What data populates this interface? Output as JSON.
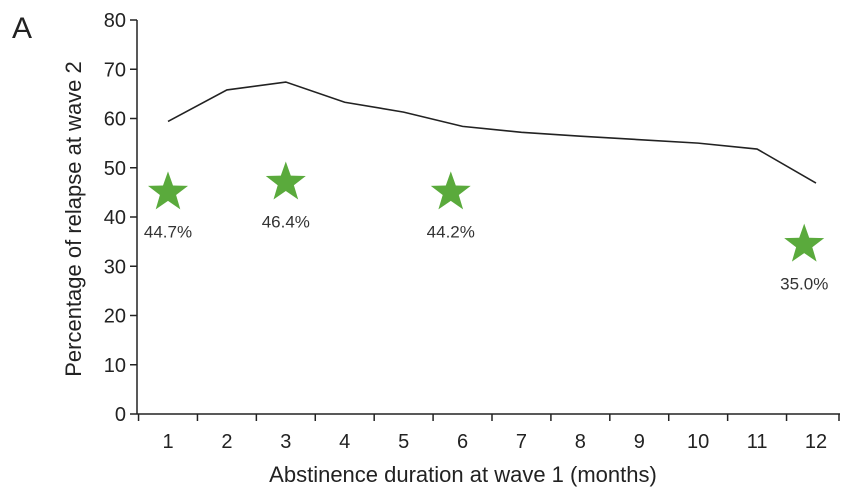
{
  "panel_label": "A",
  "colors": {
    "line": "#222222",
    "star": "#5aaa3c",
    "axis": "#222222"
  },
  "chart_data": {
    "type": "line",
    "xlabel": "Abstinence duration at wave 1 (months)",
    "ylabel": "Percentage of relapse at wave 2",
    "ylim": [
      0,
      80
    ],
    "yticks": [
      0,
      10,
      20,
      30,
      40,
      50,
      60,
      70,
      80
    ],
    "xticks": [
      1,
      2,
      3,
      4,
      5,
      6,
      7,
      8,
      9,
      10,
      11,
      12
    ],
    "grid": false,
    "series": [
      {
        "x": [
          1,
          2,
          3,
          4,
          5,
          6,
          7,
          8,
          9,
          10,
          11,
          12
        ],
        "values": [
          59.4,
          65.8,
          67.4,
          63.3,
          61.3,
          58.4,
          57.2,
          56.4,
          55.7,
          55.0,
          53.8,
          46.9
        ]
      }
    ],
    "annotations": [
      {
        "x": 1.0,
        "y": 45.0,
        "label": "44.7%"
      },
      {
        "x": 3.0,
        "y": 47.0,
        "label": "46.4%"
      },
      {
        "x": 5.8,
        "y": 45.0,
        "label": "44.2%"
      },
      {
        "x": 11.8,
        "y": 34.4,
        "label": "35.0%"
      }
    ]
  }
}
